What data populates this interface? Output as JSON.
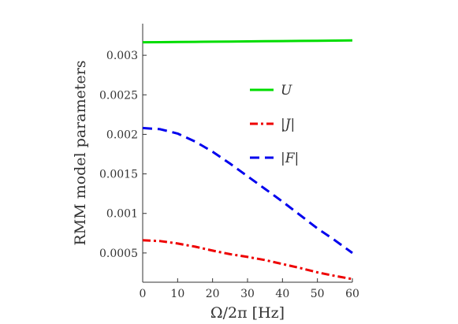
{
  "chart_data": {
    "type": "line",
    "xlabel": "Ω/2π [Hz]",
    "ylabel": "RMM model parameters",
    "xlim": [
      0,
      60
    ],
    "ylim": [
      0.00013,
      0.0034
    ],
    "x_ticks": [
      0,
      10,
      20,
      30,
      40,
      50,
      60
    ],
    "x_tick_labels": [
      "0",
      "10",
      "20",
      "30",
      "40",
      "50",
      "60"
    ],
    "y_ticks": [
      0.0005,
      0.001,
      0.0015,
      0.002,
      0.0025,
      0.003
    ],
    "y_tick_labels": [
      "0.0005",
      "0.001",
      "0.0015",
      "0.002",
      "0.0025",
      "0.003"
    ],
    "grid": false,
    "legend_position": "upper-center",
    "x": [
      0,
      5,
      10,
      15,
      20,
      25,
      30,
      35,
      40,
      45,
      50,
      55,
      60
    ],
    "series": [
      {
        "name": "U",
        "legend_label": "U",
        "color": "#00dd00",
        "dash": "solid",
        "values": [
          0.003165,
          0.003166,
          0.003168,
          0.00317,
          0.003172,
          0.003174,
          0.003176,
          0.003178,
          0.00318,
          0.003182,
          0.003184,
          0.003186,
          0.003188
        ]
      },
      {
        "name": "|J|",
        "legend_label": "|J|",
        "color": "#ee0000",
        "dash": "dashdot",
        "values": [
          0.00066,
          0.00065,
          0.00062,
          0.00058,
          0.00053,
          0.000485,
          0.00045,
          0.00041,
          0.00036,
          0.00031,
          0.000255,
          0.00021,
          0.00017
        ]
      },
      {
        "name": "|F|",
        "legend_label": "|F|",
        "color": "#0000ee",
        "dash": "dashed",
        "values": [
          0.00208,
          0.002065,
          0.00201,
          0.00191,
          0.00178,
          0.00163,
          0.00147,
          0.00131,
          0.00115,
          0.00098,
          0.00081,
          0.00066,
          0.0005
        ]
      }
    ]
  }
}
